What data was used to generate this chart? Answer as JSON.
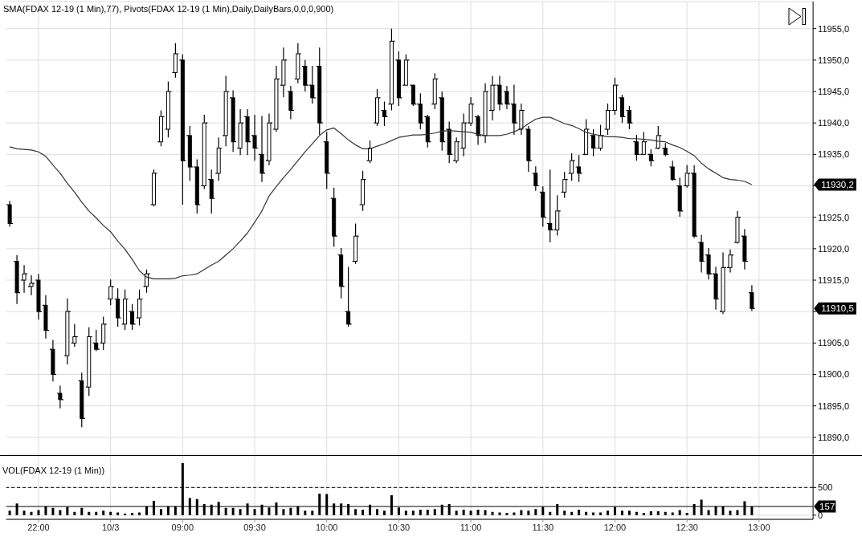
{
  "chart_data": [
    {
      "type": "candlestick",
      "title": "SMA(FDAX 12-19 (1 Min),77), Pivots(FDAX 12-19 (1 Min),Daily,DailyBars,0,0,0,900)",
      "categories": [
        null,
        null,
        null,
        null,
        null,
        null,
        null,
        null,
        null,
        null,
        null,
        null,
        null,
        null,
        null,
        null,
        null,
        null,
        null,
        null,
        null,
        null,
        null,
        null,
        null,
        null,
        null,
        null,
        null,
        null,
        null,
        null,
        null,
        null,
        null,
        null,
        null,
        null,
        null,
        null,
        null,
        null,
        null,
        null,
        null,
        null,
        null,
        null,
        null,
        null,
        null,
        null,
        null,
        null,
        null,
        null,
        null,
        null,
        null,
        null,
        null,
        null,
        null,
        null,
        null,
        null,
        null,
        null,
        null,
        null,
        null,
        null,
        null,
        null,
        null,
        null,
        null,
        null,
        null,
        null,
        null,
        null,
        null,
        null,
        null,
        null,
        null,
        null,
        null,
        null,
        null,
        null,
        null,
        null,
        null,
        null,
        null,
        null,
        null,
        null,
        null,
        null,
        null,
        null,
        null,
        null,
        null,
        null,
        null,
        null,
        null,
        null
      ],
      "ohlc": [
        [
          11927.0,
          11927.6,
          11923.5,
          11924.0
        ],
        [
          11918.0,
          11919.0,
          11911.2,
          11913.0
        ],
        [
          11915.0,
          11917.4,
          11913.0,
          11916.0
        ],
        [
          11914.0,
          11915.8,
          11912.6,
          11914.5
        ],
        [
          11915.0,
          11916.0,
          11908.7,
          11910.0
        ],
        [
          11911.0,
          11912.6,
          11905.7,
          11907.0
        ],
        [
          11904.0,
          11905.5,
          11898.9,
          11900.0
        ],
        [
          11897.0,
          11898.2,
          11894.6,
          11896.0
        ],
        [
          11903.0,
          11912.1,
          11901.6,
          11910.0
        ],
        [
          11905.0,
          11908.0,
          11904.4,
          11906.0
        ],
        [
          11899.0,
          11900.3,
          11891.6,
          11893.0
        ],
        [
          11898.0,
          11907.5,
          11896.6,
          11906.0
        ],
        [
          11905.0,
          11907.1,
          11903.7,
          11904.0
        ],
        [
          11905.0,
          11909.2,
          11903.9,
          11908.0
        ],
        [
          11912.0,
          11915.1,
          11911.0,
          11914.0
        ],
        [
          11912.0,
          11913.7,
          11907.6,
          11909.0
        ],
        [
          11908.0,
          11913.5,
          11907.1,
          11912.0
        ],
        [
          11910.0,
          11911.2,
          11907.1,
          11908.0
        ],
        [
          11909.0,
          11913.5,
          11907.8,
          11912.0
        ],
        [
          11914.0,
          11916.7,
          11913.0,
          11916.0
        ],
        [
          11927.0,
          11932.6,
          11926.7,
          11932.0
        ],
        [
          11937.0,
          11942.0,
          11936.3,
          11941.0
        ],
        [
          11939.0,
          11946.6,
          11937.7,
          11945.0
        ],
        [
          11948.0,
          11952.7,
          11947.2,
          11951.0
        ],
        [
          11950.0,
          11950.9,
          11927.0,
          11934.0
        ],
        [
          11938.0,
          11939.5,
          11930.8,
          11933.0
        ],
        [
          11933.0,
          11934.2,
          11925.6,
          11927.0
        ],
        [
          11930.0,
          11941.3,
          11929.5,
          11940.0
        ],
        [
          11931.0,
          11932.6,
          11925.6,
          11928.0
        ],
        [
          11932.0,
          11937.7,
          11930.8,
          11936.0
        ],
        [
          11938.0,
          11947.5,
          11936.3,
          11945.0
        ],
        [
          11944.0,
          11945.2,
          11935.4,
          11937.0
        ],
        [
          11936.0,
          11942.2,
          11934.9,
          11940.0
        ],
        [
          11941.0,
          11942.2,
          11934.9,
          11937.0
        ],
        [
          11938.0,
          11941.3,
          11934.0,
          11936.0
        ],
        [
          11935.0,
          11941.1,
          11930.6,
          11932.0
        ],
        [
          11934.0,
          11941.5,
          11933.3,
          11940.0
        ],
        [
          11939.0,
          11949.1,
          11938.6,
          11947.0
        ],
        [
          11946.0,
          11952.0,
          11944.1,
          11950.0
        ],
        [
          11945.0,
          11945.9,
          11940.6,
          11942.0
        ],
        [
          11947.0,
          11952.7,
          11946.3,
          11951.0
        ],
        [
          11949.0,
          11950.0,
          11945.0,
          11946.0
        ],
        [
          11946.0,
          11949.1,
          11943.1,
          11944.0
        ],
        [
          11949.0,
          11952.0,
          11938.1,
          11940.0
        ],
        [
          11937.0,
          11938.6,
          11929.5,
          11932.0
        ],
        [
          11928.0,
          11929.7,
          11920.3,
          11922.0
        ],
        [
          11919.0,
          11920.1,
          11912.1,
          11914.0
        ],
        [
          11910.0,
          11917.1,
          11907.6,
          11908.0
        ],
        [
          11918.0,
          11924.0,
          11917.6,
          11922.0
        ],
        [
          11927.0,
          11932.4,
          11926.0,
          11931.0
        ],
        [
          11934.0,
          11937.2,
          11933.6,
          11936.0
        ],
        [
          11940.0,
          11945.4,
          11939.5,
          11944.0
        ],
        [
          11942.0,
          11943.4,
          11939.5,
          11941.0
        ],
        [
          11943.0,
          11955.0,
          11942.0,
          11953.0
        ],
        [
          11950.0,
          11951.4,
          11942.7,
          11944.0
        ],
        [
          11946.0,
          11950.9,
          11945.9,
          11950.0
        ],
        [
          11946.0,
          11946.1,
          11942.7,
          11943.0
        ],
        [
          11943.0,
          11944.7,
          11939.0,
          11940.0
        ],
        [
          11941.0,
          11941.3,
          11936.1,
          11937.0
        ],
        [
          11943.0,
          11947.9,
          11942.2,
          11947.0
        ],
        [
          11944.0,
          11945.0,
          11935.6,
          11937.0
        ],
        [
          11939.0,
          11940.2,
          11933.6,
          11935.0
        ],
        [
          11934.0,
          11937.7,
          11933.6,
          11937.0
        ],
        [
          11936.0,
          11941.5,
          11934.7,
          11940.0
        ],
        [
          11940.0,
          11944.1,
          11939.5,
          11943.0
        ],
        [
          11941.0,
          11941.3,
          11936.5,
          11938.0
        ],
        [
          11938.0,
          11946.3,
          11936.8,
          11945.0
        ],
        [
          11942.0,
          11947.5,
          11940.4,
          11946.0
        ],
        [
          11946.0,
          11947.5,
          11942.0,
          11943.0
        ],
        [
          11945.0,
          11945.9,
          11942.2,
          11943.0
        ],
        [
          11943.0,
          11946.1,
          11938.1,
          11940.0
        ],
        [
          11939.0,
          11943.1,
          11938.1,
          11942.0
        ],
        [
          11939.0,
          11939.5,
          11932.2,
          11934.0
        ],
        [
          11932.0,
          11933.1,
          11929.2,
          11930.0
        ],
        [
          11929.0,
          11929.9,
          11923.5,
          11925.0
        ],
        [
          11924.0,
          11932.6,
          11921.0,
          11923.0
        ],
        [
          11923.0,
          11928.5,
          11922.1,
          11926.0
        ],
        [
          11929.0,
          11932.2,
          11928.1,
          11931.0
        ],
        [
          11932.0,
          11935.2,
          11930.8,
          11934.0
        ],
        [
          11933.0,
          11934.9,
          11930.6,
          11932.0
        ],
        [
          11935.0,
          11940.6,
          11934.9,
          11939.0
        ],
        [
          11938.0,
          11939.0,
          11934.7,
          11936.0
        ],
        [
          11936.0,
          11939.7,
          11935.6,
          11938.0
        ],
        [
          11939.0,
          11943.1,
          11938.1,
          11942.0
        ],
        [
          11942.0,
          11947.2,
          11941.3,
          11946.0
        ],
        [
          11944.0,
          11944.5,
          11940.0,
          11941.0
        ],
        [
          11942.0,
          11942.7,
          11939.0,
          11940.0
        ],
        [
          11937.0,
          11938.1,
          11934.0,
          11935.0
        ],
        [
          11935.0,
          11938.6,
          11934.9,
          11937.0
        ],
        [
          11935.0,
          11935.8,
          11933.1,
          11934.0
        ],
        [
          11936.0,
          11939.5,
          11935.8,
          11938.0
        ],
        [
          11936.0,
          11936.8,
          11934.7,
          11935.0
        ],
        [
          11933.0,
          11934.0,
          11930.8,
          11931.0
        ],
        [
          11930.0,
          11931.3,
          11925.1,
          11926.0
        ],
        [
          11930.0,
          11933.3,
          11929.7,
          11932.0
        ],
        [
          11932.0,
          11933.3,
          11921.7,
          11922.0
        ],
        [
          11921.0,
          11922.2,
          11916.2,
          11918.0
        ],
        [
          11919.0,
          11920.1,
          11915.1,
          11916.0
        ],
        [
          11916.0,
          11917.1,
          11910.3,
          11912.0
        ],
        [
          11910.0,
          11919.4,
          11909.6,
          11917.0
        ],
        [
          11917.0,
          11919.9,
          11916.2,
          11919.0
        ],
        [
          11921.0,
          11926.0,
          11920.8,
          11925.0
        ],
        [
          11922.0,
          11923.1,
          11916.7,
          11918.0
        ],
        [
          11913.0,
          11914.2,
          11910.1,
          11910.5
        ],
        null,
        null,
        null,
        null,
        null,
        null,
        null,
        null
      ],
      "color": "#000000",
      "series": [
        {
          "type": "line",
          "color": "#333333",
          "values": [
            11936.2,
            11935.9,
            11935.8,
            11935.7,
            11935.4,
            11934.7,
            11933.3,
            11932.0,
            11930.4,
            11929.0,
            11927.4,
            11926.0,
            11924.9,
            11923.7,
            11922.7,
            11921.2,
            11919.9,
            11918.3,
            11916.5,
            11915.5,
            11915.2,
            11915.2,
            11915.2,
            11915.3,
            11915.7,
            11915.8,
            11916.0,
            11916.7,
            11917.4,
            11918.0,
            11919.0,
            11920.0,
            11921.2,
            11922.5,
            11924.2,
            11926.0,
            11928.4,
            11929.9,
            11931.3,
            11932.6,
            11934.0,
            11935.4,
            11936.7,
            11938.0,
            11938.9,
            11939.2,
            11938.3,
            11937.3,
            11936.5,
            11935.9,
            11935.9,
            11936.3,
            11936.7,
            11937.2,
            11937.7,
            11937.9,
            11938.1,
            11938.1,
            11938.2,
            11938.4,
            11938.7,
            11938.8,
            11938.7,
            11938.6,
            11938.5,
            11938.2,
            11938.0,
            11938.0,
            11938.0,
            11938.2,
            11938.6,
            11939.1,
            11939.9,
            11940.6,
            11940.9,
            11940.9,
            11940.4,
            11939.9,
            11939.6,
            11939.1,
            11938.5,
            11938.2,
            11938.0,
            11937.8,
            11937.8,
            11937.7,
            11937.5,
            11937.5,
            11937.4,
            11937.3,
            11937.1,
            11937.0,
            11936.5,
            11936.1,
            11935.5,
            11934.8,
            11933.6,
            11932.7,
            11932.0,
            11931.3,
            11931.0,
            11930.9,
            11930.7,
            11930.2,
            null,
            null,
            null,
            null,
            null,
            null,
            null,
            null
          ]
        }
      ],
      "ylim": [
        11887.3,
        11959.3
      ],
      "yticks": [
        {
          "value": 11890,
          "label": "11890,0"
        },
        {
          "value": 11895,
          "label": "11895,0"
        },
        {
          "value": 11900,
          "label": "11900,0"
        },
        {
          "value": 11905,
          "label": "11905,0"
        },
        {
          "value": 11910,
          "label": null
        },
        {
          "value": 11915,
          "label": "11915,0"
        },
        {
          "value": 11920,
          "label": "11920,0"
        },
        {
          "value": 11925,
          "label": "11925,0"
        },
        {
          "value": 11930,
          "label": null
        },
        {
          "value": 11935,
          "label": "11935,0"
        },
        {
          "value": 11940,
          "label": "11940,0"
        },
        {
          "value": 11945,
          "label": "11945,0"
        },
        {
          "value": 11950,
          "label": "11950,0"
        },
        {
          "value": 11955,
          "label": "11955,0"
        }
      ],
      "grid": true,
      "tick_labels": "y",
      "annotations": [
        "11930,2",
        "11910,5"
      ]
    },
    {
      "type": "bar",
      "title": "VOL(FDAX 12-19 (1 Min))",
      "categories": [
        null,
        null,
        null,
        null,
        "22:00",
        null,
        null,
        null,
        null,
        null,
        null,
        null,
        null,
        null,
        "10/3",
        null,
        null,
        null,
        null,
        null,
        null,
        null,
        null,
        null,
        "09:00",
        null,
        null,
        null,
        null,
        null,
        null,
        null,
        null,
        null,
        "09:30",
        null,
        null,
        null,
        null,
        null,
        null,
        null,
        null,
        null,
        "10:00",
        null,
        null,
        null,
        null,
        null,
        null,
        null,
        null,
        null,
        "10:30",
        null,
        null,
        null,
        null,
        null,
        null,
        null,
        null,
        null,
        "11:00",
        null,
        null,
        null,
        null,
        null,
        null,
        null,
        null,
        null,
        "11:30",
        null,
        null,
        null,
        null,
        null,
        null,
        null,
        null,
        null,
        "12:00",
        null,
        null,
        null,
        null,
        null,
        null,
        null,
        null,
        null,
        "12:30",
        null,
        null,
        null,
        null,
        null,
        null,
        null,
        null,
        null,
        "13:00",
        null,
        null,
        null,
        null,
        null,
        null,
        null
      ],
      "values": [
        80,
        210,
        80,
        60,
        90,
        160,
        130,
        90,
        150,
        60,
        130,
        60,
        60,
        80,
        60,
        50,
        30,
        40,
        50,
        160,
        260,
        110,
        160,
        160,
        940,
        310,
        290,
        200,
        190,
        240,
        130,
        130,
        110,
        210,
        110,
        190,
        140,
        230,
        110,
        130,
        160,
        80,
        80,
        390,
        380,
        210,
        210,
        200,
        110,
        100,
        190,
        110,
        80,
        360,
        140,
        80,
        80,
        100,
        100,
        110,
        190,
        200,
        80,
        100,
        80,
        100,
        90,
        60,
        50,
        40,
        50,
        90,
        80,
        110,
        150,
        60,
        200,
        80,
        60,
        100,
        60,
        50,
        50,
        80,
        150,
        80,
        80,
        60,
        40,
        70,
        70,
        60,
        50,
        90,
        40,
        200,
        280,
        90,
        160,
        160,
        80,
        90,
        250,
        157,
        null,
        null,
        null,
        null,
        null,
        null,
        null,
        null
      ],
      "color": "#000000",
      "ylim": [
        -75,
        1070
      ],
      "yticks": [
        0,
        500
      ],
      "grid": true,
      "ref_lines": [
        {
          "axis": "y",
          "value": 500,
          "line_style": "dashed",
          "color": "#000000"
        },
        {
          "axis": "y",
          "value": 157,
          "label": "157",
          "color": "#000000"
        }
      ]
    }
  ]
}
